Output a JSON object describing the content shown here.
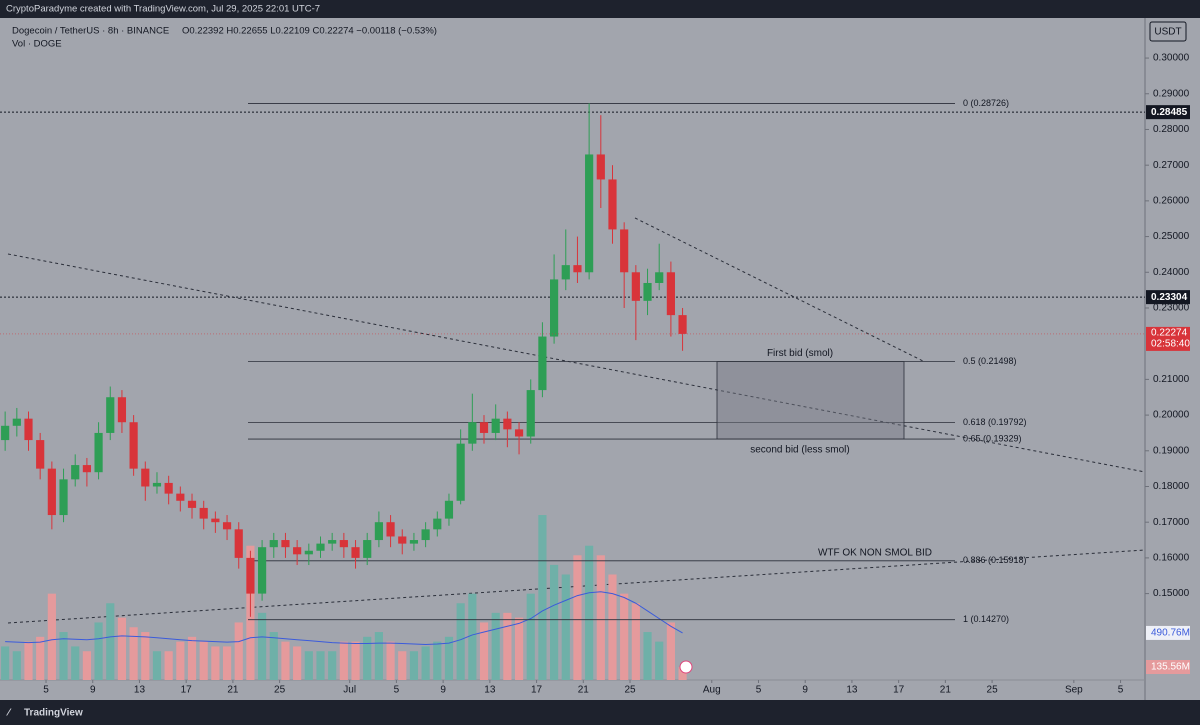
{
  "header": {
    "credit": "CryptoParadyme created with TradingView.com, Jul 29, 2025 22:01 UTC-7",
    "symbol": "Dogecoin / TetherUS · 8h · BINANCE",
    "ohlc": "O0.22392 H0.22655 L0.22109 C0.22274 −0.00118 (−0.53%)",
    "vol": "Vol · DOGE"
  },
  "footer": {
    "brand": "TradingView"
  },
  "chart_data": {
    "type": "candlestick",
    "currency": "USDT",
    "x": [
      "2025-06-01",
      "2025-06-02",
      "2025-06-03",
      "2025-06-04",
      "2025-06-05",
      "2025-06-06",
      "2025-06-07",
      "2025-06-08",
      "2025-06-09",
      "2025-06-10",
      "2025-06-11",
      "2025-06-12",
      "2025-06-13",
      "2025-06-14",
      "2025-06-15",
      "2025-06-16",
      "2025-06-17",
      "2025-06-18",
      "2025-06-19",
      "2025-06-20",
      "2025-06-21",
      "2025-06-22",
      "2025-06-23",
      "2025-06-24",
      "2025-06-25",
      "2025-06-26",
      "2025-06-27",
      "2025-06-28",
      "2025-06-29",
      "2025-06-30",
      "2025-07-01",
      "2025-07-02",
      "2025-07-03",
      "2025-07-04",
      "2025-07-05",
      "2025-07-06",
      "2025-07-07",
      "2025-07-08",
      "2025-07-09",
      "2025-07-10",
      "2025-07-11",
      "2025-07-12",
      "2025-07-13",
      "2025-07-14",
      "2025-07-15",
      "2025-07-16",
      "2025-07-17",
      "2025-07-18",
      "2025-07-19",
      "2025-07-20",
      "2025-07-21",
      "2025-07-22",
      "2025-07-23",
      "2025-07-24",
      "2025-07-25",
      "2025-07-26",
      "2025-07-27",
      "2025-07-28",
      "2025-07-29"
    ],
    "open": [
      0.193,
      0.197,
      0.199,
      0.193,
      0.185,
      0.172,
      0.182,
      0.186,
      0.184,
      0.195,
      0.205,
      0.198,
      0.185,
      0.18,
      0.181,
      0.178,
      0.176,
      0.174,
      0.171,
      0.17,
      0.168,
      0.16,
      0.15,
      0.163,
      0.165,
      0.163,
      0.161,
      0.162,
      0.164,
      0.165,
      0.163,
      0.16,
      0.165,
      0.17,
      0.166,
      0.164,
      0.165,
      0.168,
      0.171,
      0.176,
      0.192,
      0.198,
      0.195,
      0.199,
      0.196,
      0.194,
      0.207,
      0.222,
      0.238,
      0.242,
      0.24,
      0.273,
      0.266,
      0.252,
      0.24,
      0.232,
      0.237,
      0.24,
      0.228
    ],
    "high": [
      0.201,
      0.202,
      0.201,
      0.195,
      0.187,
      0.185,
      0.189,
      0.188,
      0.198,
      0.208,
      0.207,
      0.2,
      0.187,
      0.184,
      0.183,
      0.18,
      0.178,
      0.176,
      0.173,
      0.172,
      0.17,
      0.162,
      0.165,
      0.167,
      0.167,
      0.165,
      0.164,
      0.166,
      0.167,
      0.167,
      0.165,
      0.167,
      0.173,
      0.172,
      0.168,
      0.167,
      0.17,
      0.173,
      0.178,
      0.196,
      0.206,
      0.2,
      0.203,
      0.201,
      0.198,
      0.21,
      0.226,
      0.245,
      0.252,
      0.25,
      0.2873,
      0.284,
      0.27,
      0.254,
      0.242,
      0.241,
      0.248,
      0.243,
      0.23
    ],
    "low": [
      0.19,
      0.194,
      0.19,
      0.182,
      0.168,
      0.17,
      0.18,
      0.18,
      0.182,
      0.193,
      0.195,
      0.183,
      0.176,
      0.178,
      0.175,
      0.173,
      0.171,
      0.168,
      0.167,
      0.165,
      0.157,
      0.1435,
      0.148,
      0.16,
      0.16,
      0.158,
      0.158,
      0.16,
      0.162,
      0.16,
      0.157,
      0.158,
      0.163,
      0.163,
      0.161,
      0.162,
      0.163,
      0.166,
      0.169,
      0.175,
      0.19,
      0.192,
      0.193,
      0.191,
      0.189,
      0.192,
      0.205,
      0.22,
      0.235,
      0.237,
      0.238,
      0.258,
      0.248,
      0.23,
      0.221,
      0.228,
      0.235,
      0.222,
      0.218
    ],
    "close": [
      0.197,
      0.199,
      0.193,
      0.185,
      0.172,
      0.182,
      0.186,
      0.184,
      0.195,
      0.205,
      0.198,
      0.185,
      0.18,
      0.181,
      0.178,
      0.176,
      0.174,
      0.171,
      0.17,
      0.168,
      0.16,
      0.15,
      0.163,
      0.165,
      0.163,
      0.161,
      0.162,
      0.164,
      0.165,
      0.163,
      0.16,
      0.165,
      0.17,
      0.166,
      0.164,
      0.165,
      0.168,
      0.171,
      0.176,
      0.192,
      0.198,
      0.195,
      0.199,
      0.196,
      0.194,
      0.207,
      0.222,
      0.238,
      0.242,
      0.24,
      0.273,
      0.266,
      0.252,
      0.24,
      0.232,
      0.237,
      0.24,
      0.228,
      0.22274
    ],
    "up_color": "#2e9e55",
    "down_color": "#d8343a",
    "xlim": [
      "2025-06-01",
      "2025-09-08"
    ],
    "xticks": [
      {
        "value": "2025-06-05",
        "label": "5"
      },
      {
        "value": "2025-06-09",
        "label": "9"
      },
      {
        "value": "2025-06-13",
        "label": "13"
      },
      {
        "value": "2025-06-17",
        "label": "17"
      },
      {
        "value": "2025-06-21",
        "label": "21"
      },
      {
        "value": "2025-06-25",
        "label": "25"
      },
      {
        "value": "2025-07-01",
        "label": "Jul"
      },
      {
        "value": "2025-07-05",
        "label": "5"
      },
      {
        "value": "2025-07-09",
        "label": "9"
      },
      {
        "value": "2025-07-13",
        "label": "13"
      },
      {
        "value": "2025-07-17",
        "label": "17"
      },
      {
        "value": "2025-07-21",
        "label": "21"
      },
      {
        "value": "2025-07-25",
        "label": "25"
      },
      {
        "value": "2025-08-01",
        "label": "Aug"
      },
      {
        "value": "2025-08-05",
        "label": "5"
      },
      {
        "value": "2025-08-09",
        "label": "9"
      },
      {
        "value": "2025-08-13",
        "label": "13"
      },
      {
        "value": "2025-08-17",
        "label": "17"
      },
      {
        "value": "2025-08-21",
        "label": "21"
      },
      {
        "value": "2025-08-25",
        "label": "25"
      },
      {
        "value": "2025-09-01",
        "label": "Sep"
      },
      {
        "value": "2025-09-05",
        "label": "5"
      }
    ],
    "ylim": [
      0.1258,
      0.3101
    ],
    "yticks": [
      {
        "value": 0.3,
        "label": "0.30000"
      },
      {
        "value": 0.29,
        "label": "0.29000"
      },
      {
        "value": 0.28,
        "label": "0.28000"
      },
      {
        "value": 0.27,
        "label": "0.27000"
      },
      {
        "value": 0.26,
        "label": "0.26000"
      },
      {
        "value": 0.25,
        "label": "0.25000"
      },
      {
        "value": 0.24,
        "label": "0.24000"
      },
      {
        "value": 0.23,
        "label": "0.23000"
      },
      {
        "value": 0.21,
        "label": "0.21000"
      },
      {
        "value": 0.2,
        "label": "0.20000"
      },
      {
        "value": 0.19,
        "label": "0.19000"
      },
      {
        "value": 0.18,
        "label": "0.18000"
      },
      {
        "value": 0.17,
        "label": "0.17000"
      },
      {
        "value": 0.16,
        "label": "0.16000"
      },
      {
        "value": 0.15,
        "label": "0.15000"
      }
    ],
    "price_lines": [
      0.28485,
      0.23304
    ],
    "last_price": 0.22274,
    "countdown": "02:58:40",
    "fib": [
      {
        "label": "0 (0.28726)",
        "value": 0.28726
      },
      {
        "label": "0.5 (0.21498)",
        "value": 0.21498
      },
      {
        "label": "0.618 (0.19792)",
        "value": 0.19792
      },
      {
        "label": "0.65 (0.19329)",
        "value": 0.19329
      },
      {
        "label": "0.886 (0.15918)",
        "value": 0.15918
      },
      {
        "label": "1 (0.14270)",
        "value": 0.1427
      }
    ],
    "annotations": [
      "First bid (smol)",
      "second bid (less smol)",
      "WTF OK NON SMOL BID"
    ],
    "volume": {
      "values": [
        350,
        300,
        400,
        450,
        900,
        500,
        350,
        300,
        600,
        800,
        650,
        550,
        500,
        300,
        300,
        400,
        450,
        400,
        350,
        350,
        600,
        1400,
        700,
        500,
        400,
        350,
        300,
        300,
        300,
        400,
        400,
        450,
        500,
        400,
        300,
        300,
        350,
        400,
        450,
        800,
        900,
        600,
        700,
        700,
        650,
        900,
        1720,
        1200,
        1100,
        1300,
        1400,
        1300,
        1100,
        900,
        800,
        500,
        400,
        600,
        135.56
      ],
      "ma": [
        400,
        395,
        390,
        395,
        420,
        430,
        425,
        420,
        430,
        450,
        460,
        455,
        450,
        440,
        430,
        420,
        410,
        405,
        400,
        395,
        400,
        440,
        450,
        440,
        430,
        420,
        410,
        400,
        390,
        385,
        380,
        380,
        385,
        385,
        380,
        375,
        370,
        375,
        385,
        420,
        470,
        500,
        530,
        560,
        590,
        640,
        720,
        780,
        830,
        880,
        910,
        920,
        900,
        860,
        800,
        720,
        640,
        560,
        490.76
      ],
      "vlim": [
        0,
        6860
      ],
      "up_color": "#6fb0a8",
      "down_color": "#e59a9c",
      "ma_color": "#3b5bdb",
      "last_label": "135.56M",
      "ma_label": "490.76M"
    }
  }
}
